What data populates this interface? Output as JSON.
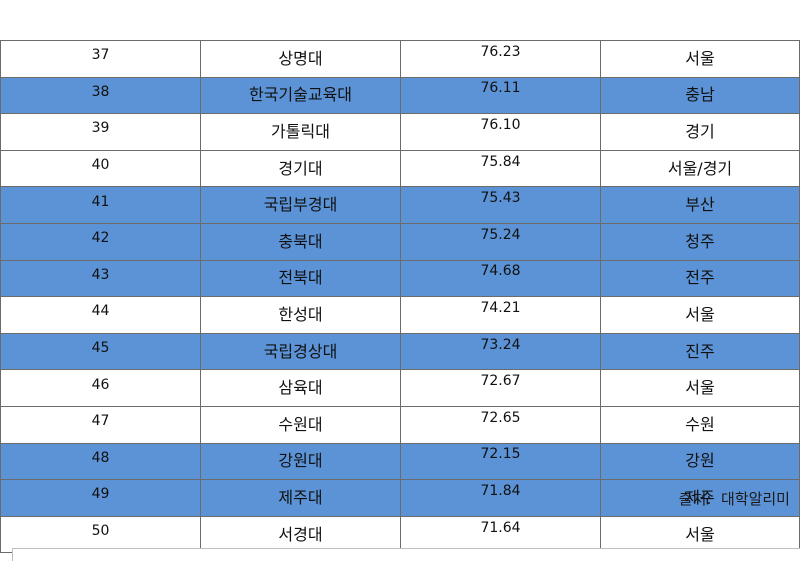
{
  "table": {
    "rows": [
      {
        "rank": "37",
        "university": "상명대",
        "score": "76.23",
        "region": "서울",
        "highlight": false
      },
      {
        "rank": "38",
        "university": "한국기술교육대",
        "score": "76.11",
        "region": "충남",
        "highlight": true
      },
      {
        "rank": "39",
        "university": "가톨릭대",
        "score": "76.10",
        "region": "경기",
        "highlight": false
      },
      {
        "rank": "40",
        "university": "경기대",
        "score": "75.84",
        "region": "서울/경기",
        "highlight": false
      },
      {
        "rank": "41",
        "university": "국립부경대",
        "score": "75.43",
        "region": "부산",
        "highlight": true
      },
      {
        "rank": "42",
        "university": "충북대",
        "score": "75.24",
        "region": "청주",
        "highlight": true
      },
      {
        "rank": "43",
        "university": "전북대",
        "score": "74.68",
        "region": "전주",
        "highlight": true
      },
      {
        "rank": "44",
        "university": "한성대",
        "score": "74.21",
        "region": "서울",
        "highlight": false
      },
      {
        "rank": "45",
        "university": "국립경상대",
        "score": "73.24",
        "region": "진주",
        "highlight": true
      },
      {
        "rank": "46",
        "university": "삼육대",
        "score": "72.67",
        "region": "서울",
        "highlight": false
      },
      {
        "rank": "47",
        "university": "수원대",
        "score": "72.65",
        "region": "수원",
        "highlight": false
      },
      {
        "rank": "48",
        "university": "강원대",
        "score": "72.15",
        "region": "강원",
        "highlight": true
      },
      {
        "rank": "49",
        "university": "제주대",
        "score": "71.84",
        "region": "제주",
        "highlight": true
      },
      {
        "rank": "50",
        "university": "서경대",
        "score": "71.64",
        "region": "서울",
        "highlight": false
      }
    ]
  },
  "source": "출처:  대학알리미",
  "colors": {
    "highlight_row": "#5b93d6",
    "border": "#6b6b6b"
  }
}
